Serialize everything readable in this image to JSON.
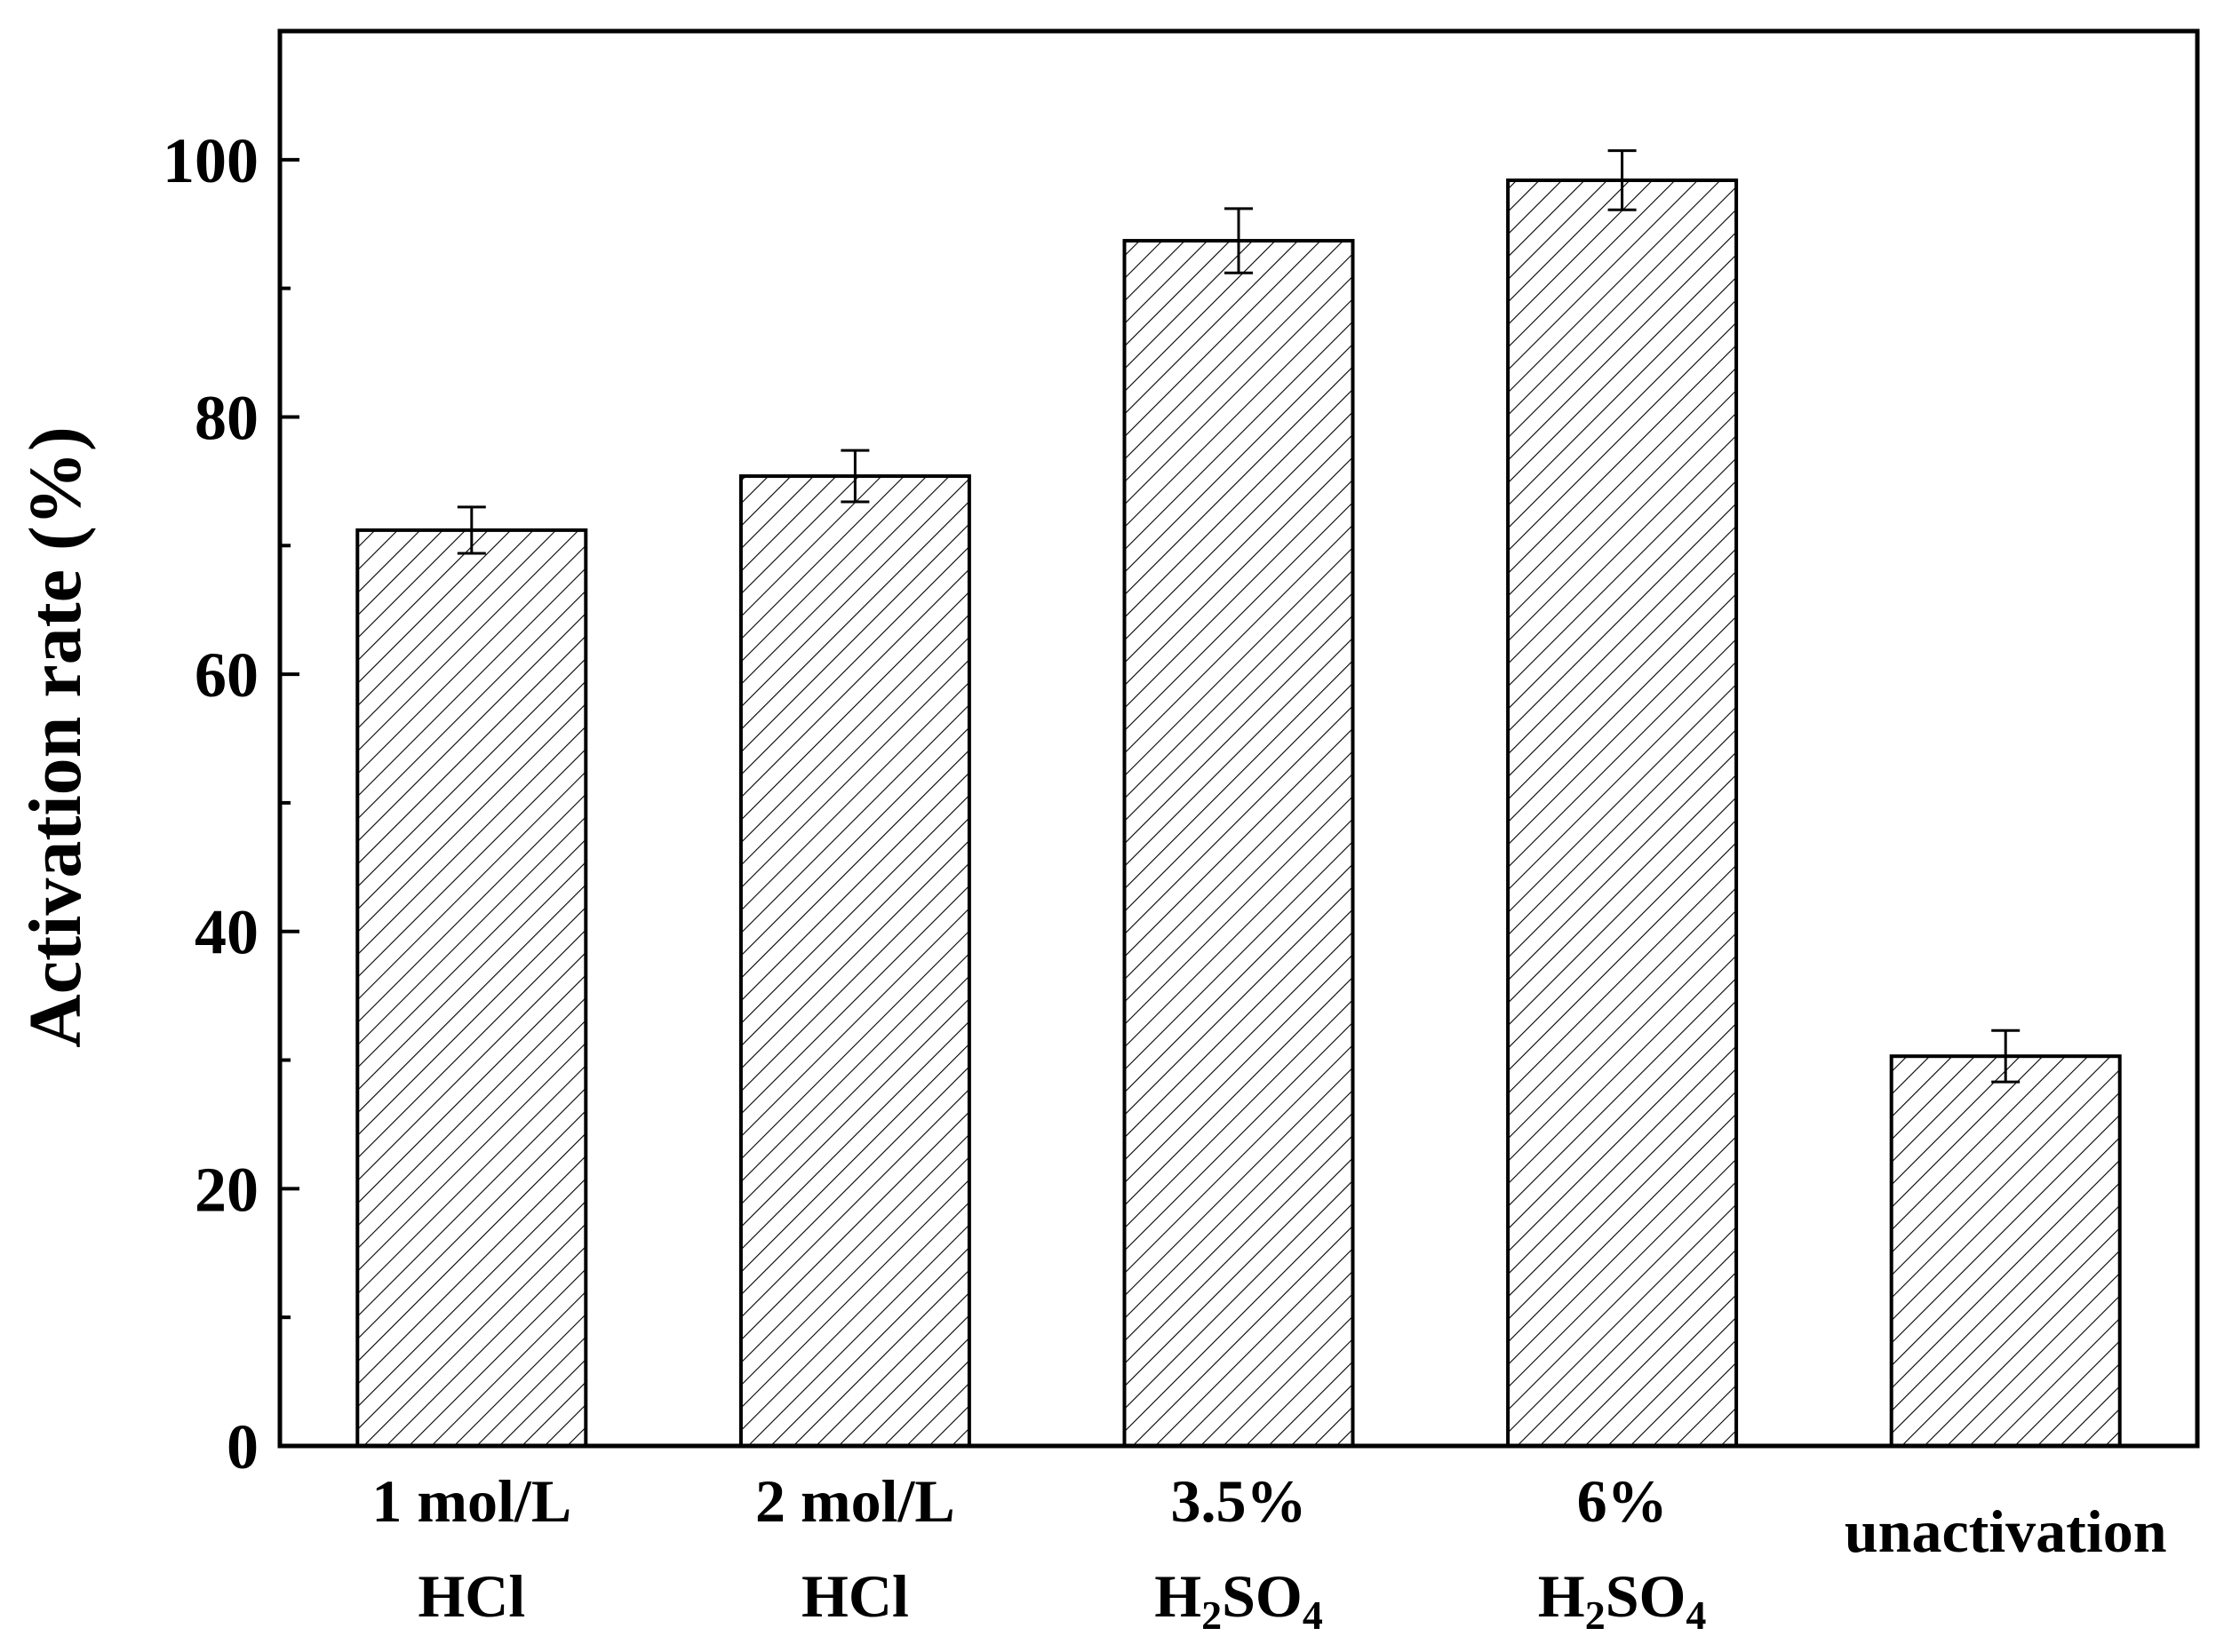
{
  "chart_data": {
    "type": "bar",
    "title": "",
    "xlabel": "",
    "ylabel": "Activation rate (%)",
    "ylim": [
      0,
      110
    ],
    "yticks": [
      0,
      20,
      40,
      60,
      80,
      100
    ],
    "ytick_labels": [
      "0",
      "20",
      "40",
      "60",
      "80",
      "100"
    ],
    "minor_ticks": [
      10,
      30,
      50,
      70,
      90
    ],
    "grid": false,
    "bar_pattern": "diagonal-hatch",
    "categories": [
      {
        "key": "1 mol/L HCl",
        "line1": "1 mol/L",
        "line2": "HCl",
        "line2_parts": []
      },
      {
        "key": "2 mol/L HCl",
        "line1": "2 mol/L",
        "line2": "HCl",
        "line2_parts": []
      },
      {
        "key": "3.5% H2SO4",
        "line1": "3.5%",
        "line2": "",
        "line2_parts": [
          [
            "H",
            false
          ],
          [
            "2",
            true
          ],
          [
            "SO",
            false
          ],
          [
            "4",
            true
          ]
        ]
      },
      {
        "key": "6% H2SO4",
        "line1": "6%",
        "line2": "",
        "line2_parts": [
          [
            "H",
            false
          ],
          [
            "2",
            true
          ],
          [
            "SO",
            false
          ],
          [
            "4",
            true
          ]
        ]
      },
      {
        "key": "unactivation",
        "line1": "unactivation",
        "line2": "",
        "line2_parts": []
      }
    ],
    "values": [
      71.2,
      75.4,
      93.7,
      98.4,
      30.3
    ],
    "errors": [
      1.8,
      2.0,
      2.5,
      2.3,
      2.0
    ],
    "colors": {
      "bar_fill": "#ffffff",
      "hatch": "#000000",
      "axis": "#000000"
    }
  }
}
